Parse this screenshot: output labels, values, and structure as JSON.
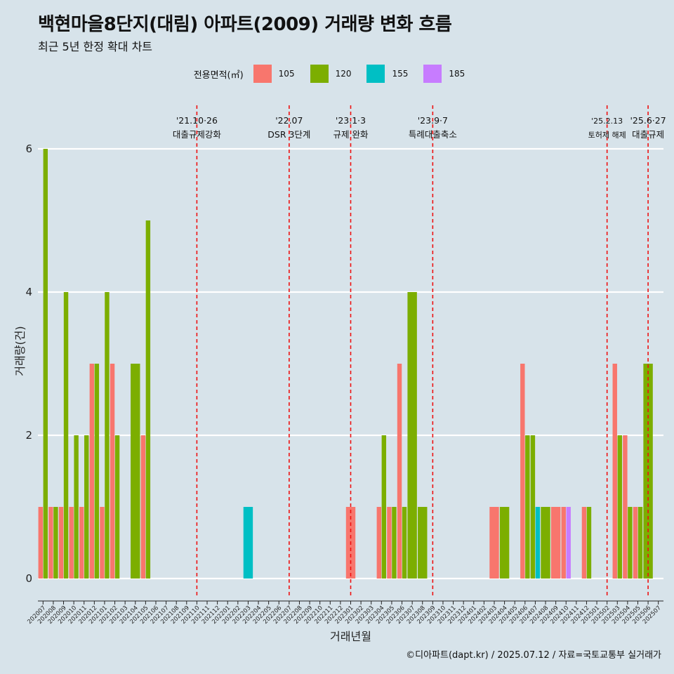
{
  "title": "백현마을8단지(대림) 아파트(2009) 거래량 변화 흐름",
  "subtitle": "최근 5년 한정 확대 차트",
  "caption": "©디아파트(dapt.kr) / 2025.07.12 / 자료=국토교통부 실거래가",
  "legend": {
    "title": "전용면적(㎡)",
    "items": [
      {
        "label": "105",
        "color": "#f8766d"
      },
      {
        "label": "120",
        "color": "#7cae00"
      },
      {
        "label": "155",
        "color": "#00bfc4"
      },
      {
        "label": "185",
        "color": "#c77cff"
      }
    ]
  },
  "chart_data": {
    "type": "bar",
    "xlabel": "거래년월",
    "ylabel": "거래량(건)",
    "ylim": [
      0,
      6
    ],
    "yticks": [
      0,
      2,
      4,
      6
    ],
    "grid": true,
    "legend_position": "top",
    "categories": [
      "202007",
      "202008",
      "202009",
      "202010",
      "202011",
      "202012",
      "202101",
      "202102",
      "202103",
      "202104",
      "202105",
      "202106",
      "202107",
      "202108",
      "202109",
      "202110",
      "202111",
      "202112",
      "202201",
      "202202",
      "202203",
      "202204",
      "202205",
      "202206",
      "202207",
      "202208",
      "202209",
      "202210",
      "202211",
      "202212",
      "202301",
      "202302",
      "202303",
      "202304",
      "202305",
      "202306",
      "202307",
      "202308",
      "202309",
      "202310",
      "202311",
      "202312",
      "202401",
      "202402",
      "202403",
      "202404",
      "202405",
      "202406",
      "202407",
      "202408",
      "202409",
      "202410",
      "202411",
      "202412",
      "202501",
      "202502",
      "202503",
      "202504",
      "202505",
      "202506",
      "202507"
    ],
    "series": [
      {
        "name": "105",
        "values": [
          1,
          1,
          1,
          1,
          1,
          3,
          1,
          3,
          0,
          0,
          2,
          0,
          0,
          0,
          0,
          0,
          0,
          0,
          0,
          0,
          0,
          0,
          0,
          0,
          0,
          0,
          0,
          0,
          0,
          0,
          1,
          0,
          0,
          1,
          1,
          3,
          0,
          0,
          0,
          0,
          0,
          0,
          0,
          0,
          1,
          0,
          0,
          3,
          0,
          0,
          1,
          1,
          0,
          1,
          0,
          0,
          3,
          2,
          1,
          0,
          0
        ]
      },
      {
        "name": "120",
        "values": [
          6,
          1,
          4,
          2,
          2,
          3,
          4,
          2,
          0,
          3,
          5,
          0,
          0,
          0,
          0,
          0,
          0,
          0,
          0,
          0,
          0,
          0,
          0,
          0,
          0,
          0,
          0,
          0,
          0,
          0,
          0,
          0,
          0,
          2,
          1,
          1,
          4,
          1,
          0,
          0,
          0,
          0,
          0,
          0,
          0,
          1,
          0,
          2,
          2,
          1,
          0,
          0,
          0,
          1,
          0,
          0,
          2,
          1,
          1,
          3,
          0
        ]
      },
      {
        "name": "155",
        "values": [
          0,
          0,
          0,
          0,
          0,
          0,
          0,
          0,
          0,
          0,
          0,
          0,
          0,
          0,
          0,
          0,
          0,
          0,
          0,
          0,
          1,
          0,
          0,
          0,
          0,
          0,
          0,
          0,
          0,
          0,
          0,
          0,
          0,
          0,
          0,
          0,
          0,
          0,
          0,
          0,
          0,
          0,
          0,
          0,
          0,
          0,
          0,
          0,
          1,
          0,
          0,
          0,
          0,
          0,
          0,
          0,
          0,
          0,
          0,
          0,
          0
        ]
      },
      {
        "name": "185",
        "values": [
          0,
          0,
          0,
          0,
          0,
          0,
          0,
          0,
          0,
          0,
          0,
          0,
          0,
          0,
          0,
          0,
          0,
          0,
          0,
          0,
          0,
          0,
          0,
          0,
          0,
          0,
          0,
          0,
          0,
          0,
          0,
          0,
          0,
          0,
          0,
          0,
          0,
          0,
          0,
          0,
          0,
          0,
          0,
          0,
          0,
          0,
          0,
          0,
          0,
          0,
          0,
          1,
          0,
          0,
          0,
          0,
          0,
          0,
          0,
          0,
          0
        ]
      }
    ],
    "annotations": [
      {
        "x": "202110",
        "date": "'21.10·26",
        "label": "대출규제강화"
      },
      {
        "x": "202207",
        "date": "'22.07",
        "label": "DSR 3단계"
      },
      {
        "x": "202301",
        "date": "'23.1·3",
        "label": "규제 완화"
      },
      {
        "x": "202309",
        "date": "'23.9·7",
        "label": "특례대출축소"
      },
      {
        "x": "202502",
        "date": "'25.2.13",
        "label": "토허제 해제"
      },
      {
        "x": "202506",
        "date": "'25.6·27",
        "label": "대출규제"
      }
    ]
  }
}
